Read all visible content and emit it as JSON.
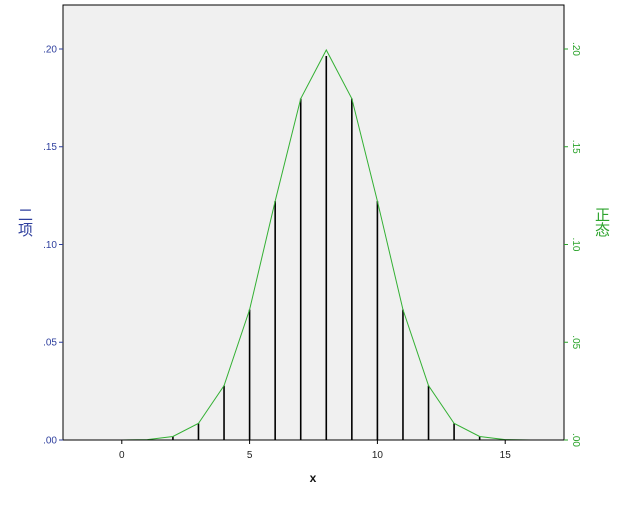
{
  "chart_data": {
    "type": "bar",
    "xlabel": "x",
    "ylabel_left": "二项",
    "ylabel_right": "正态",
    "xlim": [
      -2.3,
      17.3
    ],
    "ylim": [
      0,
      0.2225
    ],
    "x_ticks": [
      "0",
      "5",
      "10",
      "15"
    ],
    "x_tick_values": [
      0,
      5,
      10,
      15
    ],
    "y_ticks": [
      ".00",
      ".05",
      ".10",
      ".15",
      ".20"
    ],
    "y_tick_values": [
      0,
      0.05,
      0.1,
      0.15,
      0.2
    ],
    "grid": false,
    "colors": {
      "plot_bg": "#f0f0f0",
      "bars": "#000000",
      "line": "#33b033",
      "left_axis": "#2e3f9e",
      "right_axis": "#2ba32b"
    },
    "series": [
      {
        "kind": "bar",
        "axis": "left",
        "x": [
          0,
          1,
          2,
          3,
          4,
          5,
          6,
          7,
          8,
          9,
          10,
          11,
          12,
          13,
          14,
          15,
          16
        ],
        "values": [
          0.0,
          0.0002,
          0.0018,
          0.0085,
          0.0278,
          0.0667,
          0.1222,
          0.1746,
          0.1964,
          0.1746,
          0.1222,
          0.0667,
          0.0278,
          0.0085,
          0.0018,
          0.0002,
          0.0
        ]
      },
      {
        "kind": "line",
        "axis": "right",
        "x": [
          0,
          1,
          2,
          3,
          4,
          5,
          6,
          7,
          8,
          9,
          10,
          11,
          12,
          13,
          14,
          15,
          16
        ],
        "values": [
          0.0,
          0.0002,
          0.0018,
          0.0085,
          0.0278,
          0.0667,
          0.1222,
          0.1746,
          0.1995,
          0.1746,
          0.1222,
          0.0667,
          0.0278,
          0.0085,
          0.0018,
          0.0002,
          0.0
        ]
      }
    ]
  }
}
